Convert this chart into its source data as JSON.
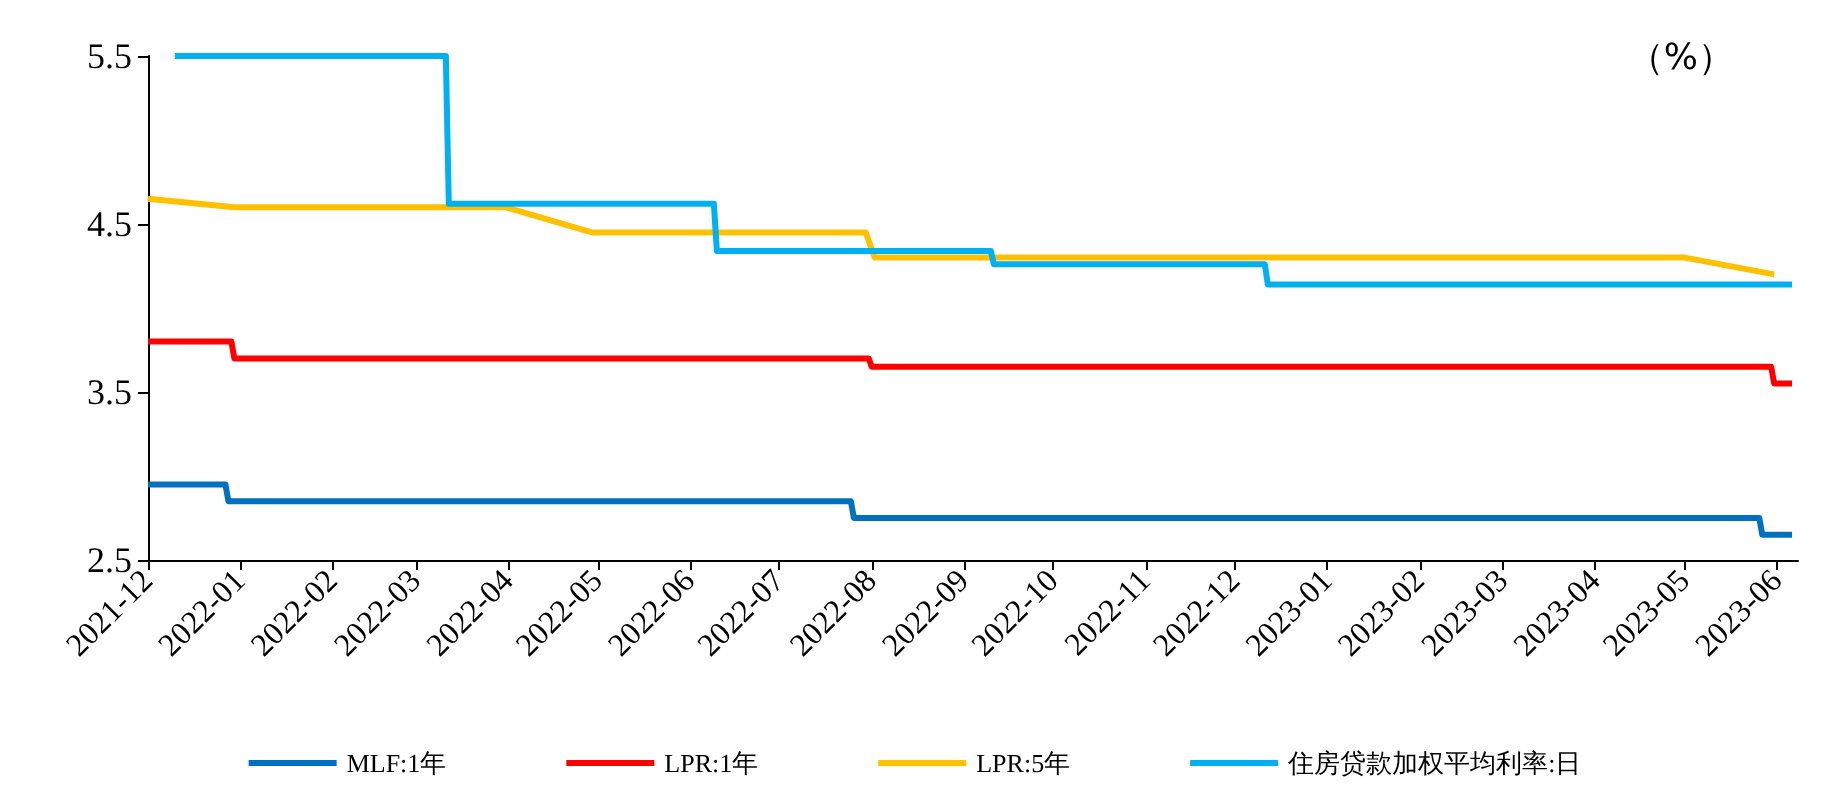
{
  "chart_data": {
    "type": "line",
    "annotations": [
      "（%）"
    ],
    "xlim": [
      "2021-12-01",
      "2023-06-08"
    ],
    "xticks": [
      "2021-12",
      "2022-01",
      "2022-02",
      "2022-03",
      "2022-04",
      "2022-05",
      "2022-06",
      "2022-07",
      "2022-08",
      "2022-09",
      "2022-10",
      "2022-11",
      "2022-12",
      "2023-01",
      "2023-02",
      "2023-03",
      "2023-04",
      "2023-05",
      "2023-06"
    ],
    "ylim": [
      2.5,
      5.5
    ],
    "yticks": [
      2.5,
      3.5,
      4.5,
      5.5
    ],
    "grid": false,
    "legend": "bottom",
    "marker": "none",
    "line_style": "solid",
    "series": [
      {
        "name": "MLF:1年",
        "color": "#0070c0",
        "x": [
          "2021-12-01",
          "2021-12-27",
          "2021-12-28",
          "2022-07-25",
          "2022-07-26",
          "2023-05-26",
          "2023-05-27",
          "2023-06-06"
        ],
        "values": [
          2.95,
          2.95,
          2.85,
          2.85,
          2.75,
          2.75,
          2.65,
          2.65
        ]
      },
      {
        "name": "LPR:1年",
        "color": "#ff0000",
        "x": [
          "2021-12-01",
          "2021-12-29",
          "2021-12-30",
          "2022-07-31",
          "2022-08-01",
          "2023-05-30",
          "2023-05-31",
          "2023-06-06"
        ],
        "values": [
          3.8,
          3.8,
          3.7,
          3.7,
          3.65,
          3.65,
          3.55,
          3.55
        ]
      },
      {
        "name": "LPR:5年",
        "color": "#ffc000",
        "x": [
          "2021-12-01",
          "2021-12-30",
          "2022-03-31",
          "2022-04-29",
          "2022-07-30",
          "2022-08-02",
          "2023-05-01",
          "2023-05-31"
        ],
        "values": [
          4.65,
          4.6,
          4.6,
          4.45,
          4.45,
          4.3,
          4.3,
          4.2
        ]
      },
      {
        "name": "住房贷款加权平均利率:日",
        "color": "#00b0f0",
        "x": [
          "2021-12-10",
          "2022-03-11",
          "2022-03-12",
          "2022-06-09",
          "2022-06-10",
          "2022-09-10",
          "2022-09-11",
          "2022-12-11",
          "2022-12-12",
          "2023-06-06"
        ],
        "values": [
          5.5,
          5.5,
          4.62,
          4.62,
          4.34,
          4.34,
          4.26,
          4.26,
          4.14,
          4.14
        ]
      }
    ]
  }
}
